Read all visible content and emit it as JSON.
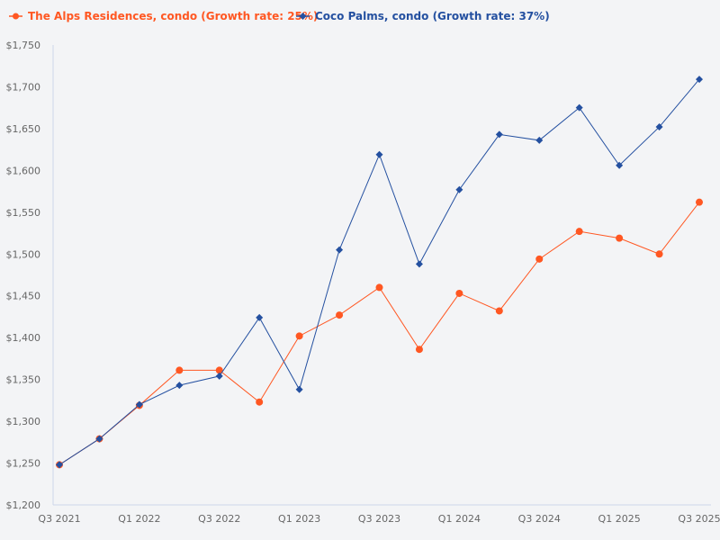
{
  "chart_data": {
    "type": "line",
    "title": "",
    "xlabel": "",
    "ylabel": "",
    "ylim": [
      1200,
      1750
    ],
    "yticks": [
      "$1,200",
      "$1,250",
      "$1,300",
      "$1,350",
      "$1,400",
      "$1,450",
      "$1,500",
      "$1,550",
      "$1,600",
      "$1,650",
      "$1,700",
      "$1,750"
    ],
    "ytick_values": [
      1200,
      1250,
      1300,
      1350,
      1400,
      1450,
      1500,
      1550,
      1600,
      1650,
      1700,
      1750
    ],
    "categories": [
      "Q3 2021",
      "Q4 2021",
      "Q1 2022",
      "Q2 2022",
      "Q3 2022",
      "Q4 2022",
      "Q1 2023",
      "Q2 2023",
      "Q3 2023",
      "Q4 2023",
      "Q1 2024",
      "Q2 2024",
      "Q3 2024",
      "Q4 2024",
      "Q1 2025",
      "Q2 2025",
      "Q3 2025"
    ],
    "xtick_labels": [
      "Q3 2021",
      "",
      "Q1 2022",
      "",
      "Q3 2022",
      "",
      "Q1 2023",
      "",
      "Q3 2023",
      "",
      "Q1 2024",
      "",
      "Q3 2024",
      "",
      "Q1 2025",
      "",
      "Q3 2025"
    ],
    "grid": false,
    "legend_position": "top-left",
    "series": [
      {
        "name": "The Alps Residences, condo (Growth rate: 25%)",
        "color": "#ff5722",
        "marker": "circle",
        "values": [
          1248,
          1279,
          1319,
          1361,
          1361,
          1323,
          1402,
          1427,
          1460,
          1386,
          1453,
          1432,
          1494,
          1527,
          1519,
          1500,
          1562
        ]
      },
      {
        "name": "Coco Palms, condo (Growth rate: 37%)",
        "color": "#2450a0",
        "marker": "diamond",
        "values": [
          1248,
          1279,
          1320,
          1343,
          1354,
          1424,
          1338,
          1505,
          1619,
          1488,
          1577,
          1643,
          1636,
          1675,
          1606,
          1652,
          1709
        ]
      }
    ]
  }
}
